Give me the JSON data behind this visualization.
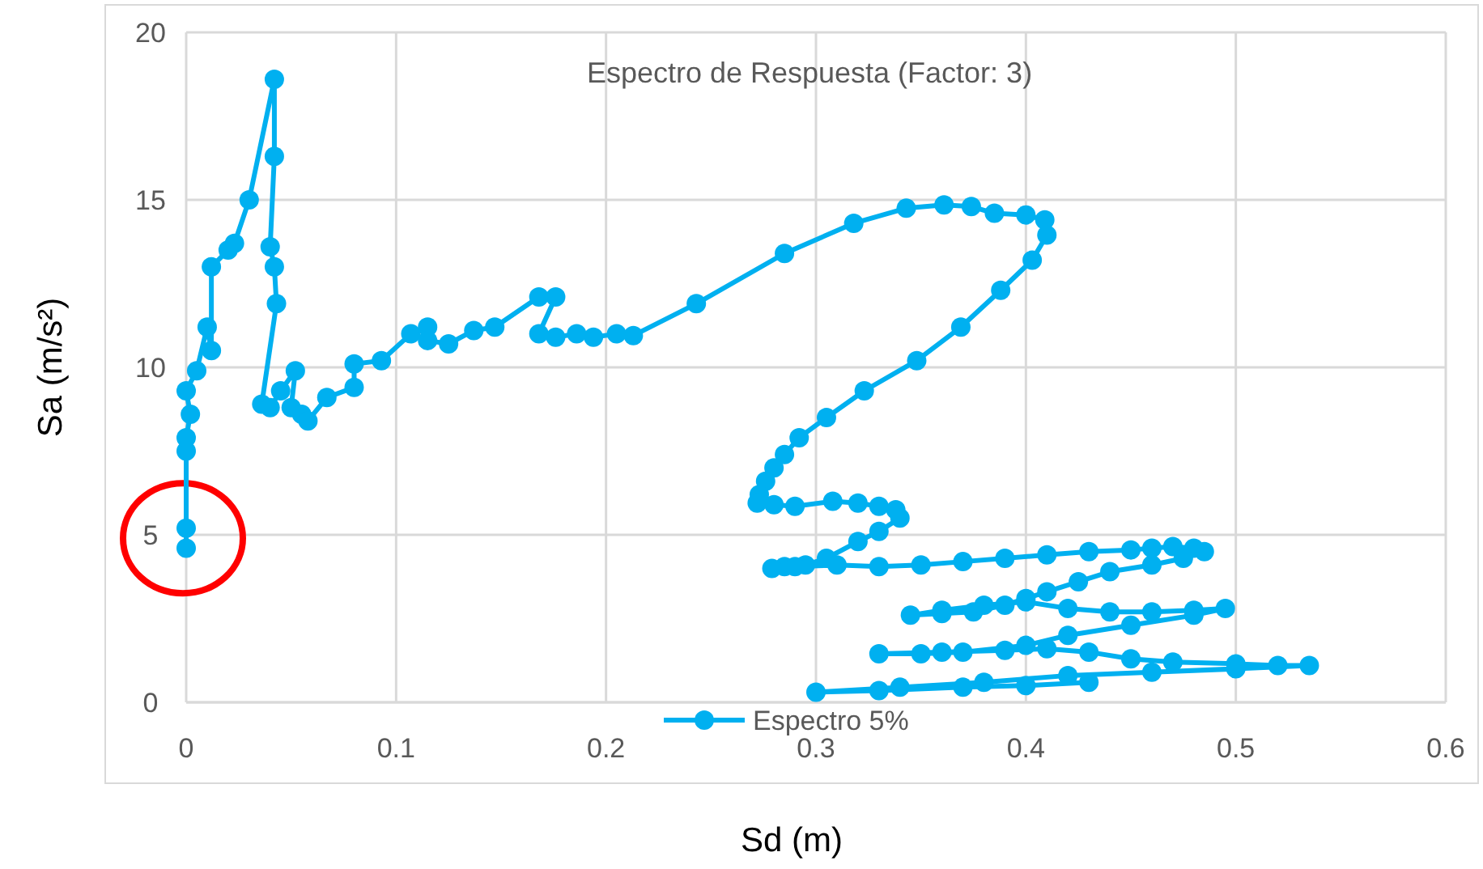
{
  "chart_data": {
    "type": "line",
    "title": "Espectro de Respuesta (Factor: 3)",
    "xlabel": "Sd (m)",
    "ylabel": "Sa (m/s²)",
    "xlim": [
      0,
      0.6
    ],
    "xticks": [
      0,
      0.1,
      0.2,
      0.3,
      0.4,
      0.5,
      0.6
    ],
    "ylim": [
      0,
      20
    ],
    "yticks": [
      0,
      5,
      10,
      15,
      20
    ],
    "grid": true,
    "legend": "bottom",
    "marker": "circle",
    "line_style": "solid",
    "series": [
      {
        "name": "Espectro 5%",
        "color": "#00b0f0",
        "x": [
          0,
          0,
          0,
          0,
          0.002,
          0,
          0.005,
          0.01,
          0.012,
          0.012,
          0.02,
          0.023,
          0.03,
          0.042,
          0.042,
          0.04,
          0.042,
          0.043,
          0.036,
          0.04,
          0.045,
          0.052,
          0.05,
          0.055,
          0.058,
          0.067,
          0.08,
          0.08,
          0.093,
          0.107,
          0.115,
          0.115,
          0.125,
          0.137,
          0.147,
          0.168,
          0.176,
          0.168,
          0.176,
          0.186,
          0.194,
          0.205,
          0.213,
          0.243,
          0.285,
          0.318,
          0.343,
          0.361,
          0.374,
          0.385,
          0.4,
          0.409,
          0.41,
          0.403,
          0.388,
          0.369,
          0.348,
          0.323,
          0.305,
          0.292,
          0.285,
          0.28,
          0.276,
          0.273,
          0.272,
          0.28,
          0.29,
          0.308,
          0.32,
          0.33,
          0.338,
          0.34,
          0.33,
          0.32,
          0.305,
          0.295,
          0.285,
          0.279,
          0.29,
          0.31,
          0.33,
          0.35,
          0.37,
          0.39,
          0.41,
          0.43,
          0.45,
          0.46,
          0.47,
          0.48,
          0.485,
          0.475,
          0.46,
          0.44,
          0.425,
          0.41,
          0.4,
          0.39,
          0.375,
          0.36,
          0.345,
          0.36,
          0.38,
          0.4,
          0.42,
          0.44,
          0.46,
          0.48,
          0.495,
          0.48,
          0.45,
          0.42,
          0.4,
          0.37,
          0.35,
          0.33,
          0.36,
          0.39,
          0.41,
          0.43,
          0.45,
          0.47,
          0.5,
          0.52,
          0.535,
          0.5,
          0.46,
          0.42,
          0.38,
          0.34,
          0.3,
          0.33,
          0.37,
          0.4,
          0.43
        ],
        "values": [
          4.6,
          5.2,
          7.5,
          7.9,
          8.6,
          9.3,
          9.9,
          11.2,
          10.5,
          13.0,
          13.5,
          13.7,
          15.0,
          18.6,
          16.3,
          13.6,
          13.0,
          11.9,
          8.9,
          8.8,
          9.3,
          9.9,
          8.8,
          8.6,
          8.4,
          9.1,
          9.4,
          10.1,
          10.2,
          11.0,
          11.2,
          10.8,
          10.7,
          11.1,
          11.2,
          12.1,
          12.1,
          11.0,
          10.9,
          11.0,
          10.9,
          11.0,
          10.95,
          11.9,
          13.4,
          14.3,
          14.75,
          14.85,
          14.8,
          14.6,
          14.55,
          14.4,
          13.95,
          13.2,
          12.3,
          11.2,
          10.2,
          9.3,
          8.5,
          7.9,
          7.4,
          7.0,
          6.6,
          6.2,
          5.95,
          5.9,
          5.85,
          6.0,
          5.95,
          5.85,
          5.75,
          5.5,
          5.1,
          4.8,
          4.3,
          4.1,
          4.05,
          4.0,
          4.05,
          4.1,
          4.05,
          4.1,
          4.2,
          4.3,
          4.4,
          4.5,
          4.55,
          4.6,
          4.65,
          4.6,
          4.5,
          4.3,
          4.1,
          3.9,
          3.6,
          3.3,
          3.1,
          2.9,
          2.7,
          2.65,
          2.6,
          2.75,
          2.9,
          3.0,
          2.8,
          2.7,
          2.7,
          2.75,
          2.8,
          2.6,
          2.3,
          2.0,
          1.7,
          1.5,
          1.45,
          1.45,
          1.5,
          1.55,
          1.6,
          1.5,
          1.3,
          1.2,
          1.15,
          1.1,
          1.1,
          1.0,
          0.9,
          0.8,
          0.6,
          0.45,
          0.3,
          0.35,
          0.45,
          0.5,
          0.6
        ]
      }
    ]
  }
}
